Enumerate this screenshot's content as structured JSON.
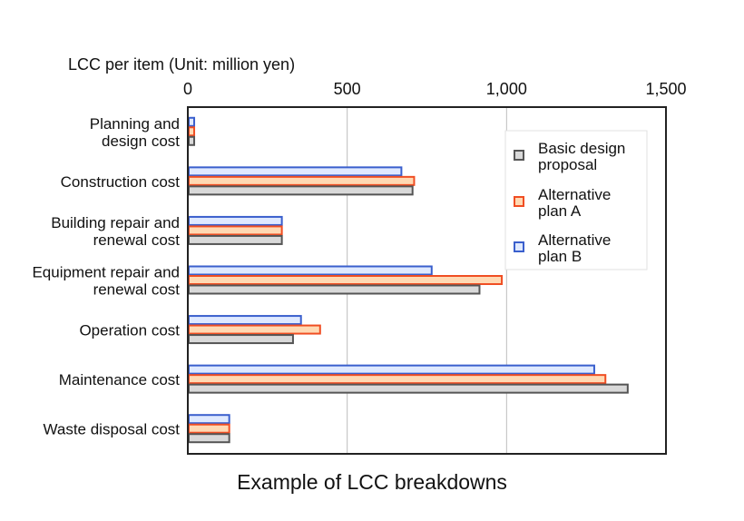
{
  "caption": "Example of LCC breakdowns",
  "chart_data": {
    "type": "bar",
    "orientation": "horizontal",
    "axis_title": "LCC per item (Unit: million yen)",
    "xlim": [
      0,
      1500
    ],
    "x_ticks": [
      0,
      500,
      1000,
      1500
    ],
    "x_tick_labels": [
      "0",
      "500",
      "1,000",
      "1,500"
    ],
    "grid": true,
    "legend_position": "top-right",
    "categories": [
      [
        "Planning and",
        "design cost"
      ],
      [
        "Construction cost"
      ],
      [
        "Building repair and",
        "renewal cost"
      ],
      [
        "Equipment repair and",
        "renewal cost"
      ],
      [
        "Operation cost"
      ],
      [
        "Maintenance cost"
      ],
      [
        "Waste disposal cost"
      ]
    ],
    "series": [
      {
        "name": [
          "Alternative",
          "plan B"
        ],
        "color": "#3a5fcd",
        "fill": "#dfe9ff",
        "values": [
          20,
          670,
          295,
          765,
          355,
          1275,
          130
        ]
      },
      {
        "name": [
          "Alternative",
          "plan A"
        ],
        "color": "#f04e23",
        "fill": "#ffd9b3",
        "values": [
          20,
          710,
          295,
          985,
          415,
          1310,
          130
        ]
      },
      {
        "name": [
          "Basic design",
          "proposal"
        ],
        "color": "#555555",
        "fill": "#d9d9d9",
        "values": [
          20,
          705,
          295,
          915,
          330,
          1380,
          130
        ]
      }
    ],
    "legend_order": [
      2,
      1,
      0
    ]
  }
}
